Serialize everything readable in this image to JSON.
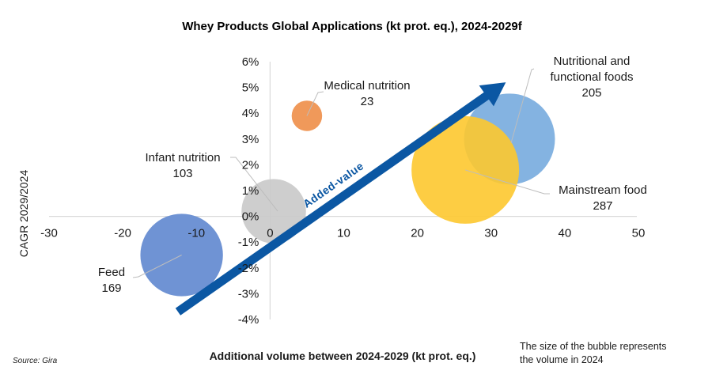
{
  "chart_data": {
    "type": "bubble",
    "title": "Whey Products Global Applications (kt prot. eq.), 2024-2029f",
    "xlabel": "Additional volume between 2024-2029 (kt prot. eq.)",
    "ylabel": "CAGR 2029/2024",
    "xlim": [
      -30,
      50
    ],
    "ylim": [
      -4,
      6
    ],
    "x_ticks": [
      "-30",
      "-20",
      "-10",
      "0",
      "10",
      "20",
      "30",
      "40",
      "50"
    ],
    "y_ticks": [
      "6%",
      "5%",
      "4%",
      "3%",
      "2%",
      "1%",
      "0%",
      "-1%",
      "-2%",
      "-3%",
      "-4%"
    ],
    "x_tick_values": [
      -30,
      -20,
      -10,
      0,
      10,
      20,
      30,
      40,
      50
    ],
    "y_tick_values": [
      6,
      5,
      4,
      3,
      2,
      1,
      0,
      -1,
      -2,
      -3,
      -4
    ],
    "grid": "zero-lines-only",
    "series": [
      {
        "name": "Feed",
        "volume_2024": "169",
        "x": -12,
        "y": -1.5,
        "size": 169,
        "color": "#6f93d4",
        "opacity": 1.0,
        "label_pos": "left-below"
      },
      {
        "name": "Infant nutrition",
        "volume_2024": "103",
        "x": 0.5,
        "y": 0.2,
        "size": 103,
        "color": "#c9c9c9",
        "opacity": 0.9,
        "label_pos": "upper-left"
      },
      {
        "name": "Medical nutrition",
        "volume_2024": "23",
        "x": 5,
        "y": 3.9,
        "size": 23,
        "color": "#f0995a",
        "opacity": 1.0,
        "label_pos": "upper-right"
      },
      {
        "name": "Nutritional and functional foods",
        "name_lines": [
          "Nutritional and",
          "functional foods"
        ],
        "volume_2024": "205",
        "x": 32.5,
        "y": 3.0,
        "size": 205,
        "color": "#6ea6dc",
        "opacity": 0.85,
        "label_pos": "upper-right"
      },
      {
        "name": "Mainstream food",
        "volume_2024": "287",
        "x": 26.5,
        "y": 1.8,
        "size": 287,
        "color": "#fdc82f",
        "opacity": 0.9,
        "label_pos": "lower-right"
      }
    ],
    "annotation": {
      "text": "Added-value",
      "color": "#0b57a3",
      "from": {
        "x": -12.5,
        "y": -3.7
      },
      "to": {
        "x": 32,
        "y": 5.2
      }
    },
    "note": [
      "The size of the bubble represents",
      "the volume in 2024"
    ],
    "source": "Source: Gira"
  }
}
